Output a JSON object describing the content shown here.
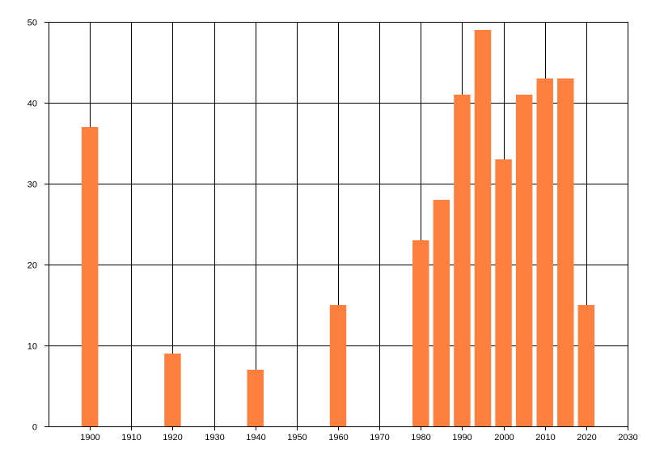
{
  "chart_data": {
    "type": "bar",
    "x": [
      1900,
      1920,
      1940,
      1960,
      1980,
      1985,
      1990,
      1995,
      2000,
      2005,
      2010,
      2015,
      2020
    ],
    "values": [
      37,
      9,
      7,
      15,
      23,
      28,
      41,
      49,
      33,
      41,
      43,
      43,
      15
    ],
    "xlim": [
      1890,
      2030
    ],
    "ylim": [
      0,
      50
    ],
    "x_ticks": [
      1900,
      1910,
      1920,
      1930,
      1940,
      1950,
      1960,
      1970,
      1980,
      1990,
      2000,
      2010,
      2020,
      2030
    ],
    "y_ticks": [
      0,
      10,
      20,
      30,
      40,
      50
    ],
    "bar_width_years": 4,
    "grid": true,
    "legend": "none",
    "title": "",
    "xlabel": "",
    "ylabel": "",
    "colors": {
      "bar": "#FF7F3F",
      "grid": "#000000",
      "axis": "#000000",
      "background": "#FFFFFF"
    }
  }
}
